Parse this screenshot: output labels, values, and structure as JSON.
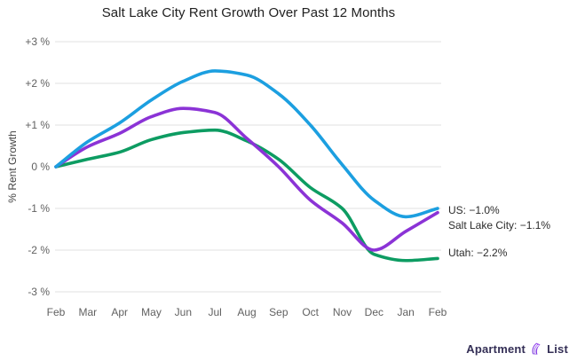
{
  "title": "Salt Lake City Rent Growth Over Past 12 Months",
  "y_axis": {
    "title": "% Rent Growth",
    "ticks": [
      "+3 %",
      "+2 %",
      "+1 %",
      "0 %",
      "-1 %",
      "-2 %",
      "-3 %"
    ],
    "tick_values": [
      3,
      2,
      1,
      0,
      -1,
      -2,
      -3
    ]
  },
  "annotations": {
    "us": "US: −1.0%",
    "salt_lake_city": "Salt Lake City: −1.1%",
    "utah": "Utah: −2.2%"
  },
  "branding": {
    "name_part1": "Apartment",
    "name_part2": "List",
    "icon": "apartment-list-logo-icon"
  },
  "colors": {
    "us_line": "#1C9FE0",
    "salt_lake_city_line": "#8B33D6",
    "utah_line": "#0D9C62",
    "gridline": "#e2e2e2",
    "axis_text": "#616161",
    "title_text": "#212121",
    "logo_text": "#342f56",
    "logo_icon_start": "#a855f7",
    "logo_icon_end": "#6d28d9"
  },
  "chart_data": {
    "type": "line",
    "title": "Salt Lake City Rent Growth Over Past 12 Months",
    "xlabel": "",
    "ylabel": "% Rent Growth",
    "x": [
      "Feb",
      "Mar",
      "Apr",
      "May",
      "Jun",
      "Jul",
      "Aug",
      "Sep",
      "Oct",
      "Nov",
      "Dec",
      "Jan",
      "Feb"
    ],
    "ylim": [
      -3,
      3
    ],
    "grid": "horizontal-only",
    "legend": "end-of-line-annotations",
    "line_style": "smooth",
    "series": [
      {
        "name": "US",
        "color": "#1C9FE0",
        "end_label": "US: −1.0%",
        "end_value": -1.0,
        "values": [
          0.0,
          0.6,
          1.05,
          1.6,
          2.05,
          2.3,
          2.2,
          1.75,
          1.0,
          0.05,
          -0.8,
          -1.2,
          -1.0
        ]
      },
      {
        "name": "Salt Lake City",
        "color": "#8B33D6",
        "end_label": "Salt Lake City: −1.1%",
        "end_value": -1.1,
        "values": [
          0.0,
          0.48,
          0.8,
          1.2,
          1.4,
          1.3,
          0.68,
          0.0,
          -0.8,
          -1.35,
          -2.0,
          -1.55,
          -1.1
        ]
      },
      {
        "name": "Utah",
        "color": "#0D9C62",
        "end_label": "Utah: −2.2%",
        "end_value": -2.2,
        "values": [
          0.0,
          0.18,
          0.35,
          0.65,
          0.82,
          0.88,
          0.62,
          0.18,
          -0.5,
          -1.0,
          -2.1,
          -2.25,
          -2.2
        ]
      }
    ]
  }
}
